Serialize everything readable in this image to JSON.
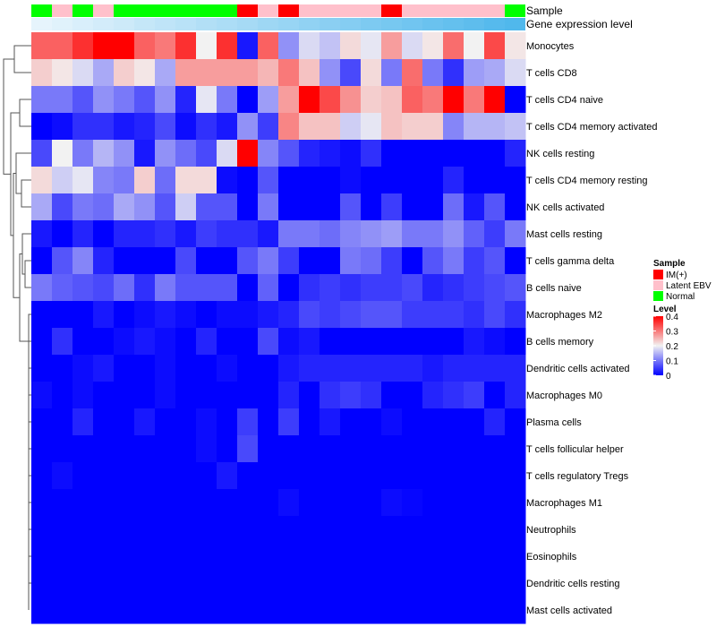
{
  "chart_data": {
    "type": "heatmap",
    "annotation_labels": {
      "sample": "Sample",
      "gene_expression": "Gene expression level"
    },
    "sample_groups": [
      "Normal",
      "Latent EBV",
      "Normal",
      "Latent EBV",
      "Normal",
      "Normal",
      "Normal",
      "Normal",
      "Normal",
      "Normal",
      "IM(+)",
      "Latent EBV",
      "IM(+)",
      "Latent EBV",
      "Latent EBV",
      "Latent EBV",
      "Latent EBV",
      "IM(+)",
      "Latent EBV",
      "Latent EBV",
      "Latent EBV",
      "Latent EBV",
      "Latent EBV",
      "Normal"
    ],
    "gene_expression_level": [
      0.0,
      0.04,
      0.09,
      0.13,
      0.17,
      0.22,
      0.26,
      0.3,
      0.35,
      0.39,
      0.43,
      0.48,
      0.52,
      0.57,
      0.61,
      0.65,
      0.7,
      0.74,
      0.78,
      0.83,
      0.87,
      0.91,
      0.96,
      1.0
    ],
    "gene_expression_colors": {
      "low": "#e6f4fc",
      "high": "#50b8ec"
    },
    "group_colors": {
      "IM(+)": "#ff0000",
      "Latent EBV": "#ffc0cb",
      "Normal": "#00ff00"
    },
    "rows": [
      "Monocytes",
      "T cells CD8",
      "T cells CD4 naive",
      "T cells CD4 memory activated",
      "NK cells resting",
      "T cells CD4 memory resting",
      "NK cells activated",
      "Mast cells resting",
      "T cells gamma delta",
      "B cells naive",
      "Macrophages M2",
      "B cells memory",
      "Dendritic cells activated",
      "Macrophages M0",
      "Plasma cells",
      "T cells follicular helper",
      "T cells regulatory  Tregs",
      "Macrophages M1",
      "Neutrophils",
      "Eosinophils",
      "Dendritic cells resting",
      "Mast cells activated"
    ],
    "values": [
      [
        0.32,
        0.32,
        0.36,
        0.4,
        0.4,
        0.32,
        0.3,
        0.36,
        0.2,
        0.36,
        0.02,
        0.32,
        0.12,
        0.18,
        0.16,
        0.22,
        0.19,
        0.27,
        0.18,
        0.21,
        0.31,
        0.2,
        0.34,
        0.21
      ],
      [
        0.23,
        0.21,
        0.18,
        0.14,
        0.23,
        0.21,
        0.14,
        0.27,
        0.27,
        0.27,
        0.27,
        0.25,
        0.3,
        0.24,
        0.12,
        0.06,
        0.22,
        0.1,
        0.31,
        0.1,
        0.04,
        0.13,
        0.14,
        0.18
      ],
      [
        0.1,
        0.1,
        0.07,
        0.12,
        0.1,
        0.07,
        0.12,
        0.03,
        0.19,
        0.1,
        0.0,
        0.13,
        0.27,
        0.4,
        0.34,
        0.28,
        0.23,
        0.24,
        0.32,
        0.3,
        0.4,
        0.3,
        0.4,
        0.0
      ],
      [
        0.0,
        0.01,
        0.04,
        0.04,
        0.02,
        0.03,
        0.06,
        0.01,
        0.04,
        0.02,
        0.12,
        0.05,
        0.29,
        0.24,
        0.24,
        0.17,
        0.19,
        0.24,
        0.23,
        0.23,
        0.11,
        0.15,
        0.15,
        0.16
      ],
      [
        0.06,
        0.2,
        0.1,
        0.15,
        0.12,
        0.02,
        0.12,
        0.09,
        0.06,
        0.18,
        0.4,
        0.11,
        0.07,
        0.03,
        0.02,
        0.01,
        0.04,
        0.0,
        0.0,
        0.0,
        0.0,
        0.0,
        0.0,
        0.03
      ],
      [
        0.22,
        0.17,
        0.19,
        0.11,
        0.1,
        0.23,
        0.09,
        0.22,
        0.22,
        0.01,
        0.0,
        0.07,
        0.0,
        0.0,
        0.0,
        0.01,
        0.0,
        0.0,
        0.0,
        0.0,
        0.03,
        0.0,
        0.0,
        0.0
      ],
      [
        0.14,
        0.06,
        0.1,
        0.09,
        0.14,
        0.12,
        0.07,
        0.17,
        0.07,
        0.07,
        0.0,
        0.1,
        0.0,
        0.0,
        0.0,
        0.07,
        0.0,
        0.05,
        0.0,
        0.0,
        0.09,
        0.02,
        0.07,
        0.0
      ],
      [
        0.02,
        0.0,
        0.03,
        0.0,
        0.03,
        0.03,
        0.04,
        0.02,
        0.05,
        0.04,
        0.04,
        0.02,
        0.1,
        0.1,
        0.09,
        0.11,
        0.12,
        0.13,
        0.1,
        0.1,
        0.12,
        0.08,
        0.05,
        0.1
      ],
      [
        0.0,
        0.07,
        0.11,
        0.03,
        0.0,
        0.0,
        0.0,
        0.06,
        0.0,
        0.0,
        0.07,
        0.1,
        0.05,
        0.0,
        0.0,
        0.1,
        0.09,
        0.05,
        0.0,
        0.07,
        0.1,
        0.05,
        0.07,
        0.0
      ],
      [
        0.1,
        0.08,
        0.07,
        0.06,
        0.09,
        0.04,
        0.1,
        0.07,
        0.07,
        0.07,
        0.0,
        0.08,
        0.0,
        0.04,
        0.05,
        0.04,
        0.05,
        0.05,
        0.06,
        0.03,
        0.04,
        0.05,
        0.06,
        0.07
      ],
      [
        0.0,
        0.0,
        0.0,
        0.02,
        0.0,
        0.01,
        0.02,
        0.01,
        0.0,
        0.01,
        0.01,
        0.02,
        0.03,
        0.06,
        0.05,
        0.06,
        0.07,
        0.07,
        0.05,
        0.05,
        0.05,
        0.04,
        0.06,
        0.04
      ],
      [
        0.0,
        0.04,
        0.0,
        0.0,
        0.01,
        0.02,
        0.01,
        0.0,
        0.03,
        0.0,
        0.0,
        0.06,
        0.01,
        0.02,
        0.0,
        0.0,
        0.0,
        0.0,
        0.0,
        0.0,
        0.0,
        0.02,
        0.01,
        0.0
      ],
      [
        0.0,
        0.0,
        0.01,
        0.02,
        0.0,
        0.0,
        0.01,
        0.0,
        0.0,
        0.01,
        0.0,
        0.0,
        0.02,
        0.03,
        0.03,
        0.03,
        0.03,
        0.03,
        0.03,
        0.02,
        0.03,
        0.03,
        0.03,
        0.03
      ],
      [
        0.01,
        0.0,
        0.01,
        0.0,
        0.0,
        0.0,
        0.01,
        0.0,
        0.0,
        0.0,
        0.0,
        0.0,
        0.03,
        0.0,
        0.04,
        0.05,
        0.04,
        0.0,
        0.0,
        0.03,
        0.04,
        0.05,
        0.0,
        0.03
      ],
      [
        0.0,
        0.0,
        0.03,
        0.0,
        0.0,
        0.02,
        0.0,
        0.0,
        0.01,
        0.0,
        0.05,
        0.0,
        0.05,
        0.0,
        0.02,
        0.0,
        0.0,
        0.01,
        0.0,
        0.0,
        0.0,
        0.0,
        0.03,
        0.0
      ],
      [
        0.0,
        0.0,
        0.0,
        0.0,
        0.0,
        0.0,
        0.0,
        0.0,
        0.01,
        0.0,
        0.06,
        0.0,
        0.0,
        0.0,
        0.0,
        0.0,
        0.0,
        0.0,
        0.0,
        0.0,
        0.0,
        0.0,
        0.0,
        0.0
      ],
      [
        0.0,
        0.01,
        0.0,
        0.0,
        0.0,
        0.0,
        0.0,
        0.0,
        0.0,
        0.02,
        0.0,
        0.0,
        0.0,
        0.0,
        0.0,
        0.0,
        0.0,
        0.0,
        0.0,
        0.0,
        0.0,
        0.0,
        0.0,
        0.0
      ],
      [
        0.0,
        0.0,
        0.0,
        0.0,
        0.0,
        0.0,
        0.0,
        0.0,
        0.0,
        0.0,
        0.0,
        0.0,
        0.01,
        0.0,
        0.0,
        0.0,
        0.0,
        0.01,
        0.005,
        0.0,
        0.0,
        0.0,
        0.0,
        0.0
      ],
      [
        0.0,
        0.0,
        0.0,
        0.0,
        0.0,
        0.0,
        0.0,
        0.0,
        0.0,
        0.0,
        0.0,
        0.0,
        0.0,
        0.0,
        0.0,
        0.0,
        0.0,
        0.0,
        0.0,
        0.0,
        0.0,
        0.0,
        0.0,
        0.0
      ],
      [
        0.0,
        0.0,
        0.0,
        0.0,
        0.0,
        0.0,
        0.0,
        0.0,
        0.0,
        0.0,
        0.0,
        0.0,
        0.0,
        0.0,
        0.0,
        0.0,
        0.0,
        0.0,
        0.0,
        0.0,
        0.0,
        0.0,
        0.0,
        0.0
      ],
      [
        0.0,
        0.0,
        0.0,
        0.0,
        0.0,
        0.0,
        0.0,
        0.0,
        0.0,
        0.0,
        0.0,
        0.0,
        0.0,
        0.0,
        0.0,
        0.0,
        0.0,
        0.0,
        0.0,
        0.0,
        0.0,
        0.0,
        0.0,
        0.0
      ],
      [
        0.0,
        0.0,
        0.0,
        0.0,
        0.0,
        0.0,
        0.0,
        0.0,
        0.0,
        0.0,
        0.0,
        0.0,
        0.0,
        0.0,
        0.0,
        0.0,
        0.0,
        0.0,
        0.0,
        0.0,
        0.0,
        0.0,
        0.0,
        0.0
      ]
    ],
    "color_scale": {
      "min": 0,
      "mid": 0.2,
      "max": 0.4,
      "low": "#0000ff",
      "middle": "#f2f2f2",
      "high": "#ff0000"
    },
    "legend": {
      "sample_title": "Sample",
      "sample_items": [
        "IM(+)",
        "Latent EBV",
        "Normal"
      ],
      "level_title": "Level",
      "level_ticks": [
        "0.4",
        "0.3",
        "0.2",
        "0.1",
        "0"
      ],
      "level_tick_values": [
        0.4,
        0.3,
        0.2,
        0.1,
        0
      ],
      "placement": "right"
    },
    "dendrogram": "rows"
  }
}
